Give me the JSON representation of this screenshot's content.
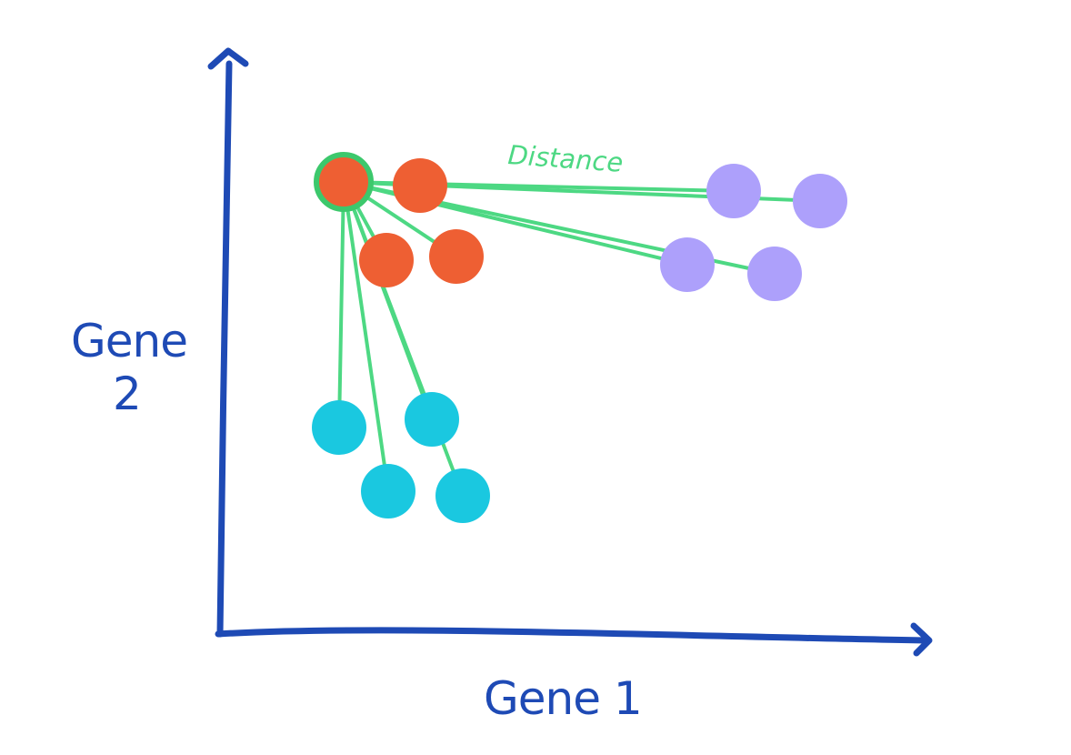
{
  "labels": {
    "x_axis": "Gene 1",
    "y_axis_line1": "Gene",
    "y_axis_line2": "2",
    "distance": "Distance"
  },
  "colors": {
    "axis": "#1E4AB5",
    "distance_lines": "#4DD883",
    "selected_ring": "#3CC86C",
    "red_cluster": "#EE5F33",
    "purple_cluster": "#ADA0FB",
    "cyan_cluster": "#1AC8E0"
  },
  "clusters": [
    {
      "name": "red",
      "color_key": "red_cluster",
      "count": 4,
      "has_selected_point": true
    },
    {
      "name": "purple",
      "color_key": "purple_cluster",
      "count": 4
    },
    {
      "name": "cyan",
      "color_key": "cyan_cluster",
      "count": 4
    }
  ]
}
